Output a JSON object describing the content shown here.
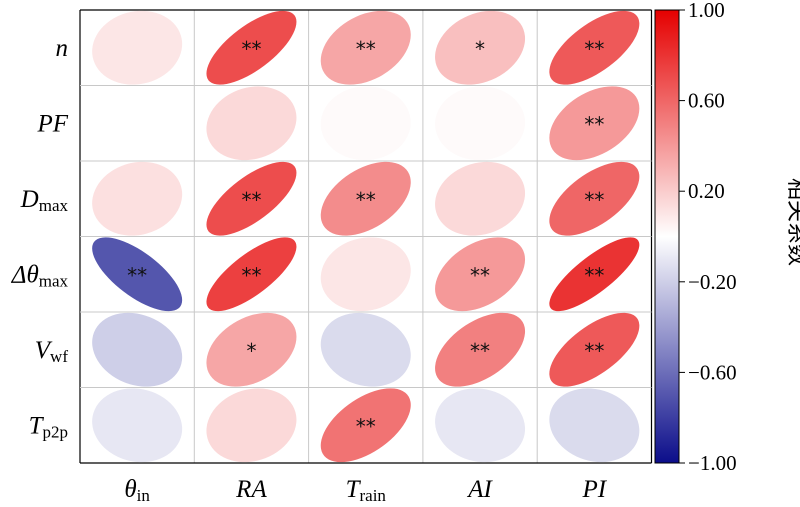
{
  "chart_data": {
    "type": "heatmap",
    "glyph": "ellipse",
    "rows": [
      {
        "id": "n",
        "label": "n",
        "sub": ""
      },
      {
        "id": "PF",
        "label": "PF",
        "sub": ""
      },
      {
        "id": "Dmax",
        "label": "D",
        "sub": "max"
      },
      {
        "id": "dthetamax",
        "label": "Δθ",
        "sub": "max"
      },
      {
        "id": "Vwf",
        "label": "V",
        "sub": "wf"
      },
      {
        "id": "Tp2p",
        "label": "T",
        "sub": "p2p"
      }
    ],
    "columns": [
      {
        "id": "thetain",
        "label": "θ",
        "sub": "in"
      },
      {
        "id": "RA",
        "label": "RA",
        "sub": ""
      },
      {
        "id": "Train",
        "label": "T",
        "sub": "rain"
      },
      {
        "id": "AI",
        "label": "AI",
        "sub": ""
      },
      {
        "id": "PI",
        "label": "PI",
        "sub": ""
      }
    ],
    "values": [
      [
        0.1,
        0.7,
        0.35,
        0.25,
        0.65
      ],
      [
        0.0,
        0.15,
        0.02,
        0.02,
        0.4
      ],
      [
        0.12,
        0.7,
        0.45,
        0.15,
        0.6
      ],
      [
        -0.7,
        0.75,
        0.1,
        0.4,
        0.8
      ],
      [
        -0.2,
        0.35,
        -0.15,
        0.5,
        0.65
      ],
      [
        -0.1,
        0.15,
        0.55,
        -0.1,
        -0.15
      ]
    ],
    "significance": [
      [
        "",
        "**",
        "**",
        "*",
        "**"
      ],
      [
        "",
        "",
        "",
        "",
        "**"
      ],
      [
        "",
        "**",
        "**",
        "",
        "**"
      ],
      [
        "**",
        "**",
        "",
        "**",
        "**"
      ],
      [
        "",
        "*",
        "",
        "**",
        "**"
      ],
      [
        "",
        "",
        "**",
        "",
        ""
      ]
    ],
    "colorbar": {
      "title": "相关系数",
      "vmin": -1.0,
      "vmax": 1.0,
      "ticks": [
        "1.00",
        "0.60",
        "0.20",
        "-0.20",
        "-0.60",
        "-1.00"
      ],
      "colors": {
        "positive": "#e50000",
        "neutral": "#ffffff",
        "negative": "#0b0d8a"
      }
    },
    "grid": true
  }
}
